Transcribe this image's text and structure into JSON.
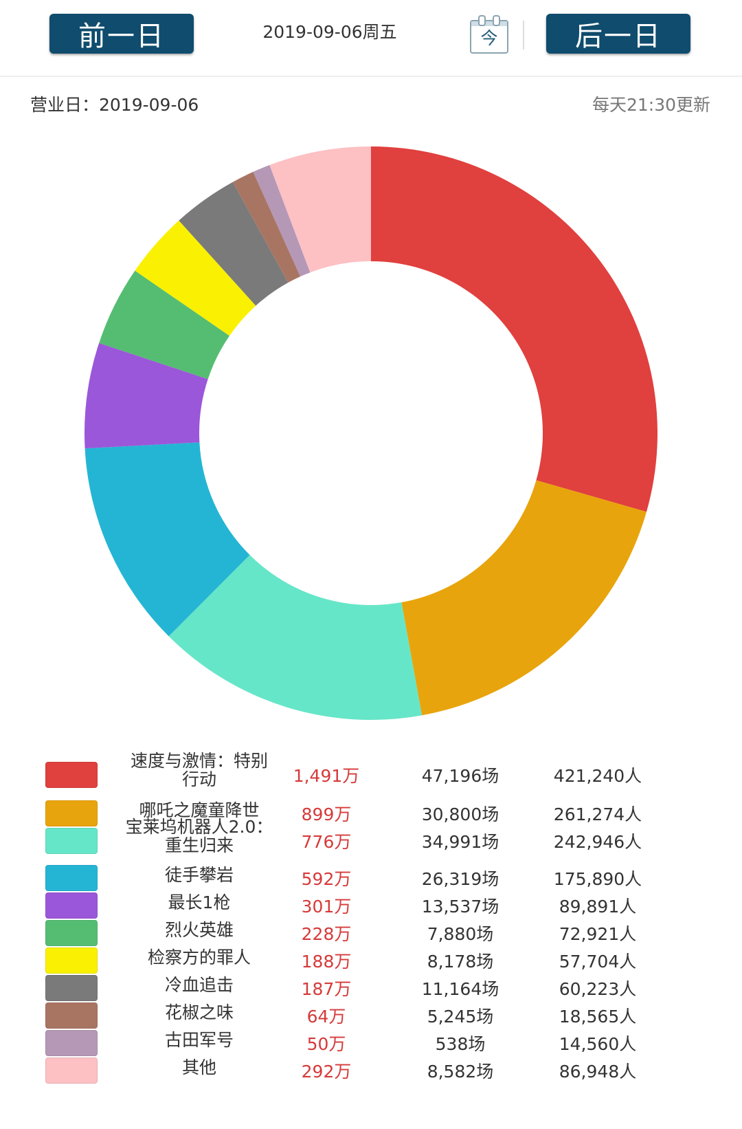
{
  "header": {
    "prev_label": "前一日",
    "next_label": "后一日",
    "date_text": "2019-09-06周五",
    "calendar_text": "今",
    "button_color": "#0f4c6e"
  },
  "info": {
    "business_day": "营业日：2019-09-06",
    "update_note": "每天21:30更新"
  },
  "chart_data": {
    "type": "pie",
    "style": "donut",
    "units": {
      "box_office": "万",
      "shows": "场",
      "admissions": "人"
    },
    "slices": [
      {
        "name": "速度与激情：特别行动",
        "value": 1491,
        "box_office": "1,491万",
        "shows": "47,196场",
        "admissions": "421,240人",
        "color": "#e0403e"
      },
      {
        "name": "哪吒之魔童降世",
        "value": 899,
        "box_office": "899万",
        "shows": "30,800场",
        "admissions": "261,274人",
        "color": "#e8a40c"
      },
      {
        "name": "宝莱坞机器人2.0：重生归来",
        "value": 776,
        "box_office": "776万",
        "shows": "34,991场",
        "admissions": "242,946人",
        "color": "#66e6c8"
      },
      {
        "name": "徒手攀岩",
        "value": 592,
        "box_office": "592万",
        "shows": "26,319场",
        "admissions": "175,890人",
        "color": "#25b5d4"
      },
      {
        "name": "最长1枪",
        "value": 301,
        "box_office": "301万",
        "shows": "13,537场",
        "admissions": "89,891人",
        "color": "#9b57d9"
      },
      {
        "name": "烈火英雄",
        "value": 228,
        "box_office": "228万",
        "shows": "7,880场",
        "admissions": "72,921人",
        "color": "#55bd72"
      },
      {
        "name": "检察方的罪人",
        "value": 188,
        "box_office": "188万",
        "shows": "8,178场",
        "admissions": "57,704人",
        "color": "#faf002"
      },
      {
        "name": "冷血追击",
        "value": 187,
        "box_office": "187万",
        "shows": "11,164场",
        "admissions": "60,223人",
        "color": "#7a7a7a"
      },
      {
        "name": "花椒之味",
        "value": 64,
        "box_office": "64万",
        "shows": "5,245场",
        "admissions": "18,565人",
        "color": "#a97563"
      },
      {
        "name": "古田军号",
        "value": 50,
        "box_office": "50万",
        "shows": "538场",
        "admissions": "14,560人",
        "color": "#b598b6"
      },
      {
        "name": "其他",
        "value": 292,
        "box_office": "292万",
        "shows": "8,582场",
        "admissions": "86,948人",
        "color": "#fdc0c3"
      }
    ],
    "legend_position": "bottom"
  }
}
